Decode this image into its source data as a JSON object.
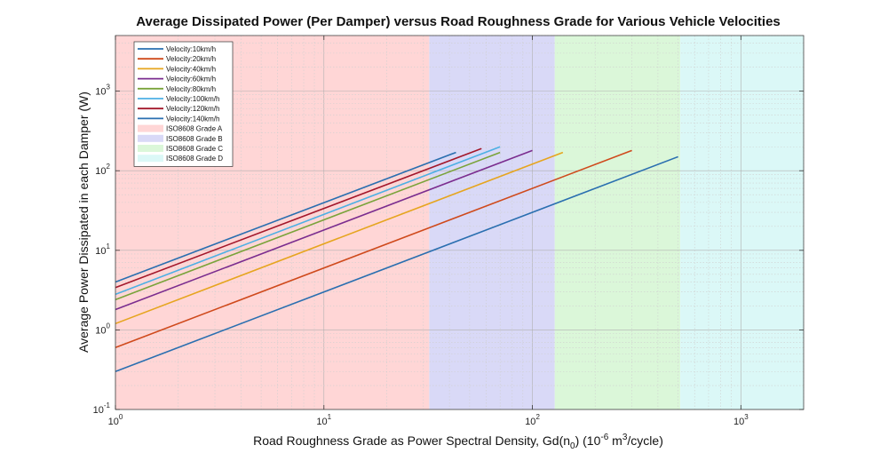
{
  "chart_data": {
    "type": "line",
    "title": "Average Dissipated Power (Per Damper) versus Road Roughness Grade for Various Vehicle Velocities",
    "xlabel": {
      "prefix": "Road Roughness Grade as Power Spectral Density, Gd(n",
      "sub": "0",
      "mid": ") (10",
      "sup1": "-6",
      "mid2": " m",
      "sup2": "3",
      "suffix": "/cycle)"
    },
    "ylabel": "Average Power Dissipated in each Damper (W)",
    "xscale": "log",
    "yscale": "log",
    "xlim": [
      1,
      2000
    ],
    "ylim": [
      0.1,
      5000
    ],
    "grid": true,
    "legend_position": "top-left",
    "x_ticks": [
      {
        "value": 1,
        "base": "10",
        "exp": "0"
      },
      {
        "value": 10,
        "base": "10",
        "exp": "1"
      },
      {
        "value": 100,
        "base": "10",
        "exp": "2"
      },
      {
        "value": 1000,
        "base": "10",
        "exp": "3"
      }
    ],
    "y_ticks": [
      {
        "value": 0.1,
        "base": "10",
        "exp": "-1"
      },
      {
        "value": 1,
        "base": "10",
        "exp": "0"
      },
      {
        "value": 10,
        "base": "10",
        "exp": "1"
      },
      {
        "value": 100,
        "base": "10",
        "exp": "2"
      },
      {
        "value": 1000,
        "base": "10",
        "exp": "3"
      }
    ],
    "regions": [
      {
        "name": "ISO8608 Grade A",
        "x_from": 1,
        "x_to": 32,
        "color": "#ffd6d6"
      },
      {
        "name": "ISO8608 Grade B",
        "x_from": 32,
        "x_to": 128,
        "color": "#d9d9f7"
      },
      {
        "name": "ISO8608 Grade C",
        "x_from": 128,
        "x_to": 512,
        "color": "#dbf7d9"
      },
      {
        "name": "ISO8608 Grade D",
        "x_from": 512,
        "x_to": 2000,
        "color": "#dbf8f7"
      }
    ],
    "series": [
      {
        "name": "Velocity:10km/h",
        "color": "#2a6fb0",
        "x": [
          1,
          500
        ],
        "y": [
          0.3,
          150
        ]
      },
      {
        "name": "Velocity:20km/h",
        "color": "#cf4a1c",
        "x": [
          1,
          300
        ],
        "y": [
          0.6,
          180
        ]
      },
      {
        "name": "Velocity:40km/h",
        "color": "#e6a51f",
        "x": [
          1,
          140
        ],
        "y": [
          1.2,
          170
        ]
      },
      {
        "name": "Velocity:60km/h",
        "color": "#7b2d8f",
        "x": [
          1,
          100
        ],
        "y": [
          1.8,
          180
        ]
      },
      {
        "name": "Velocity:80km/h",
        "color": "#7aa33a",
        "x": [
          1,
          70
        ],
        "y": [
          2.4,
          170
        ]
      },
      {
        "name": "Velocity:100km/h",
        "color": "#4db0e4",
        "x": [
          1,
          70
        ],
        "y": [
          2.8,
          200
        ]
      },
      {
        "name": "Velocity:120km/h",
        "color": "#a3182b",
        "x": [
          1,
          57
        ],
        "y": [
          3.4,
          190
        ]
      },
      {
        "name": "Velocity:140km/h",
        "color": "#2a6fb0",
        "x": [
          1,
          43
        ],
        "y": [
          4.0,
          170
        ]
      }
    ]
  }
}
